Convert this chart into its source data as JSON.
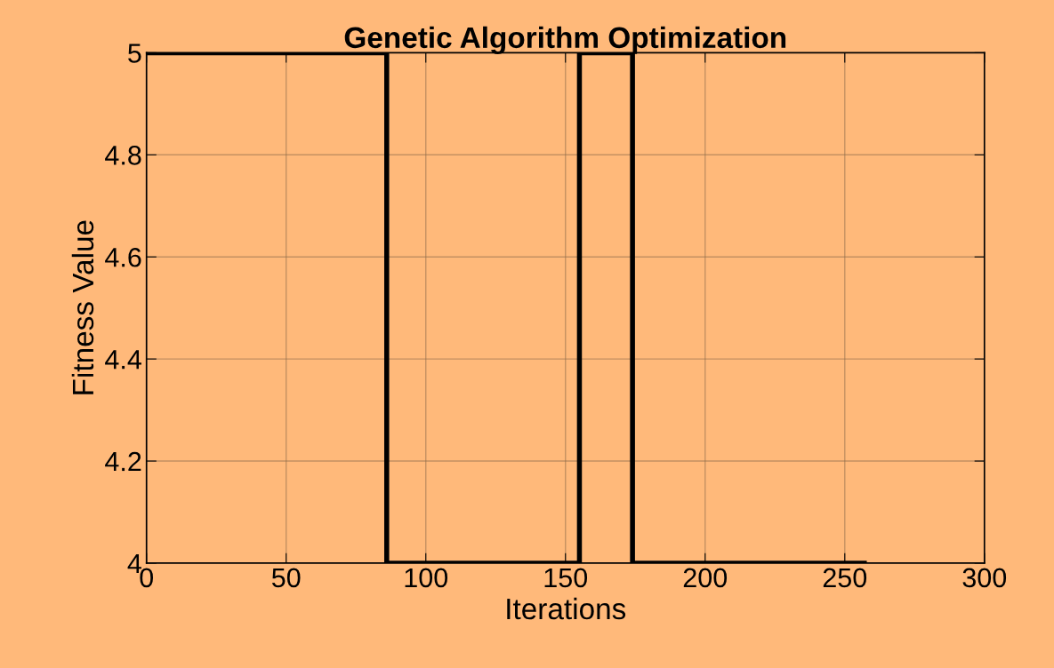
{
  "chart_data": {
    "type": "step",
    "title": "Genetic Algorithm Optimization",
    "xlabel": "Iterations",
    "ylabel": "Fitness Value",
    "x": [
      0,
      86,
      155,
      174,
      257
    ],
    "series": [
      {
        "color": "#000000",
        "values": [
          5,
          4,
          5,
          4,
          4
        ]
      }
    ],
    "xlim": [
      0,
      300
    ],
    "xticks": [
      0,
      50,
      100,
      150,
      200,
      250,
      300
    ],
    "ylim": [
      4,
      5
    ],
    "yticks": [
      4,
      4.2,
      4.4,
      4.6,
      4.8,
      5
    ],
    "grid": true,
    "legend": false,
    "marker": "none",
    "line_style": "solid"
  }
}
